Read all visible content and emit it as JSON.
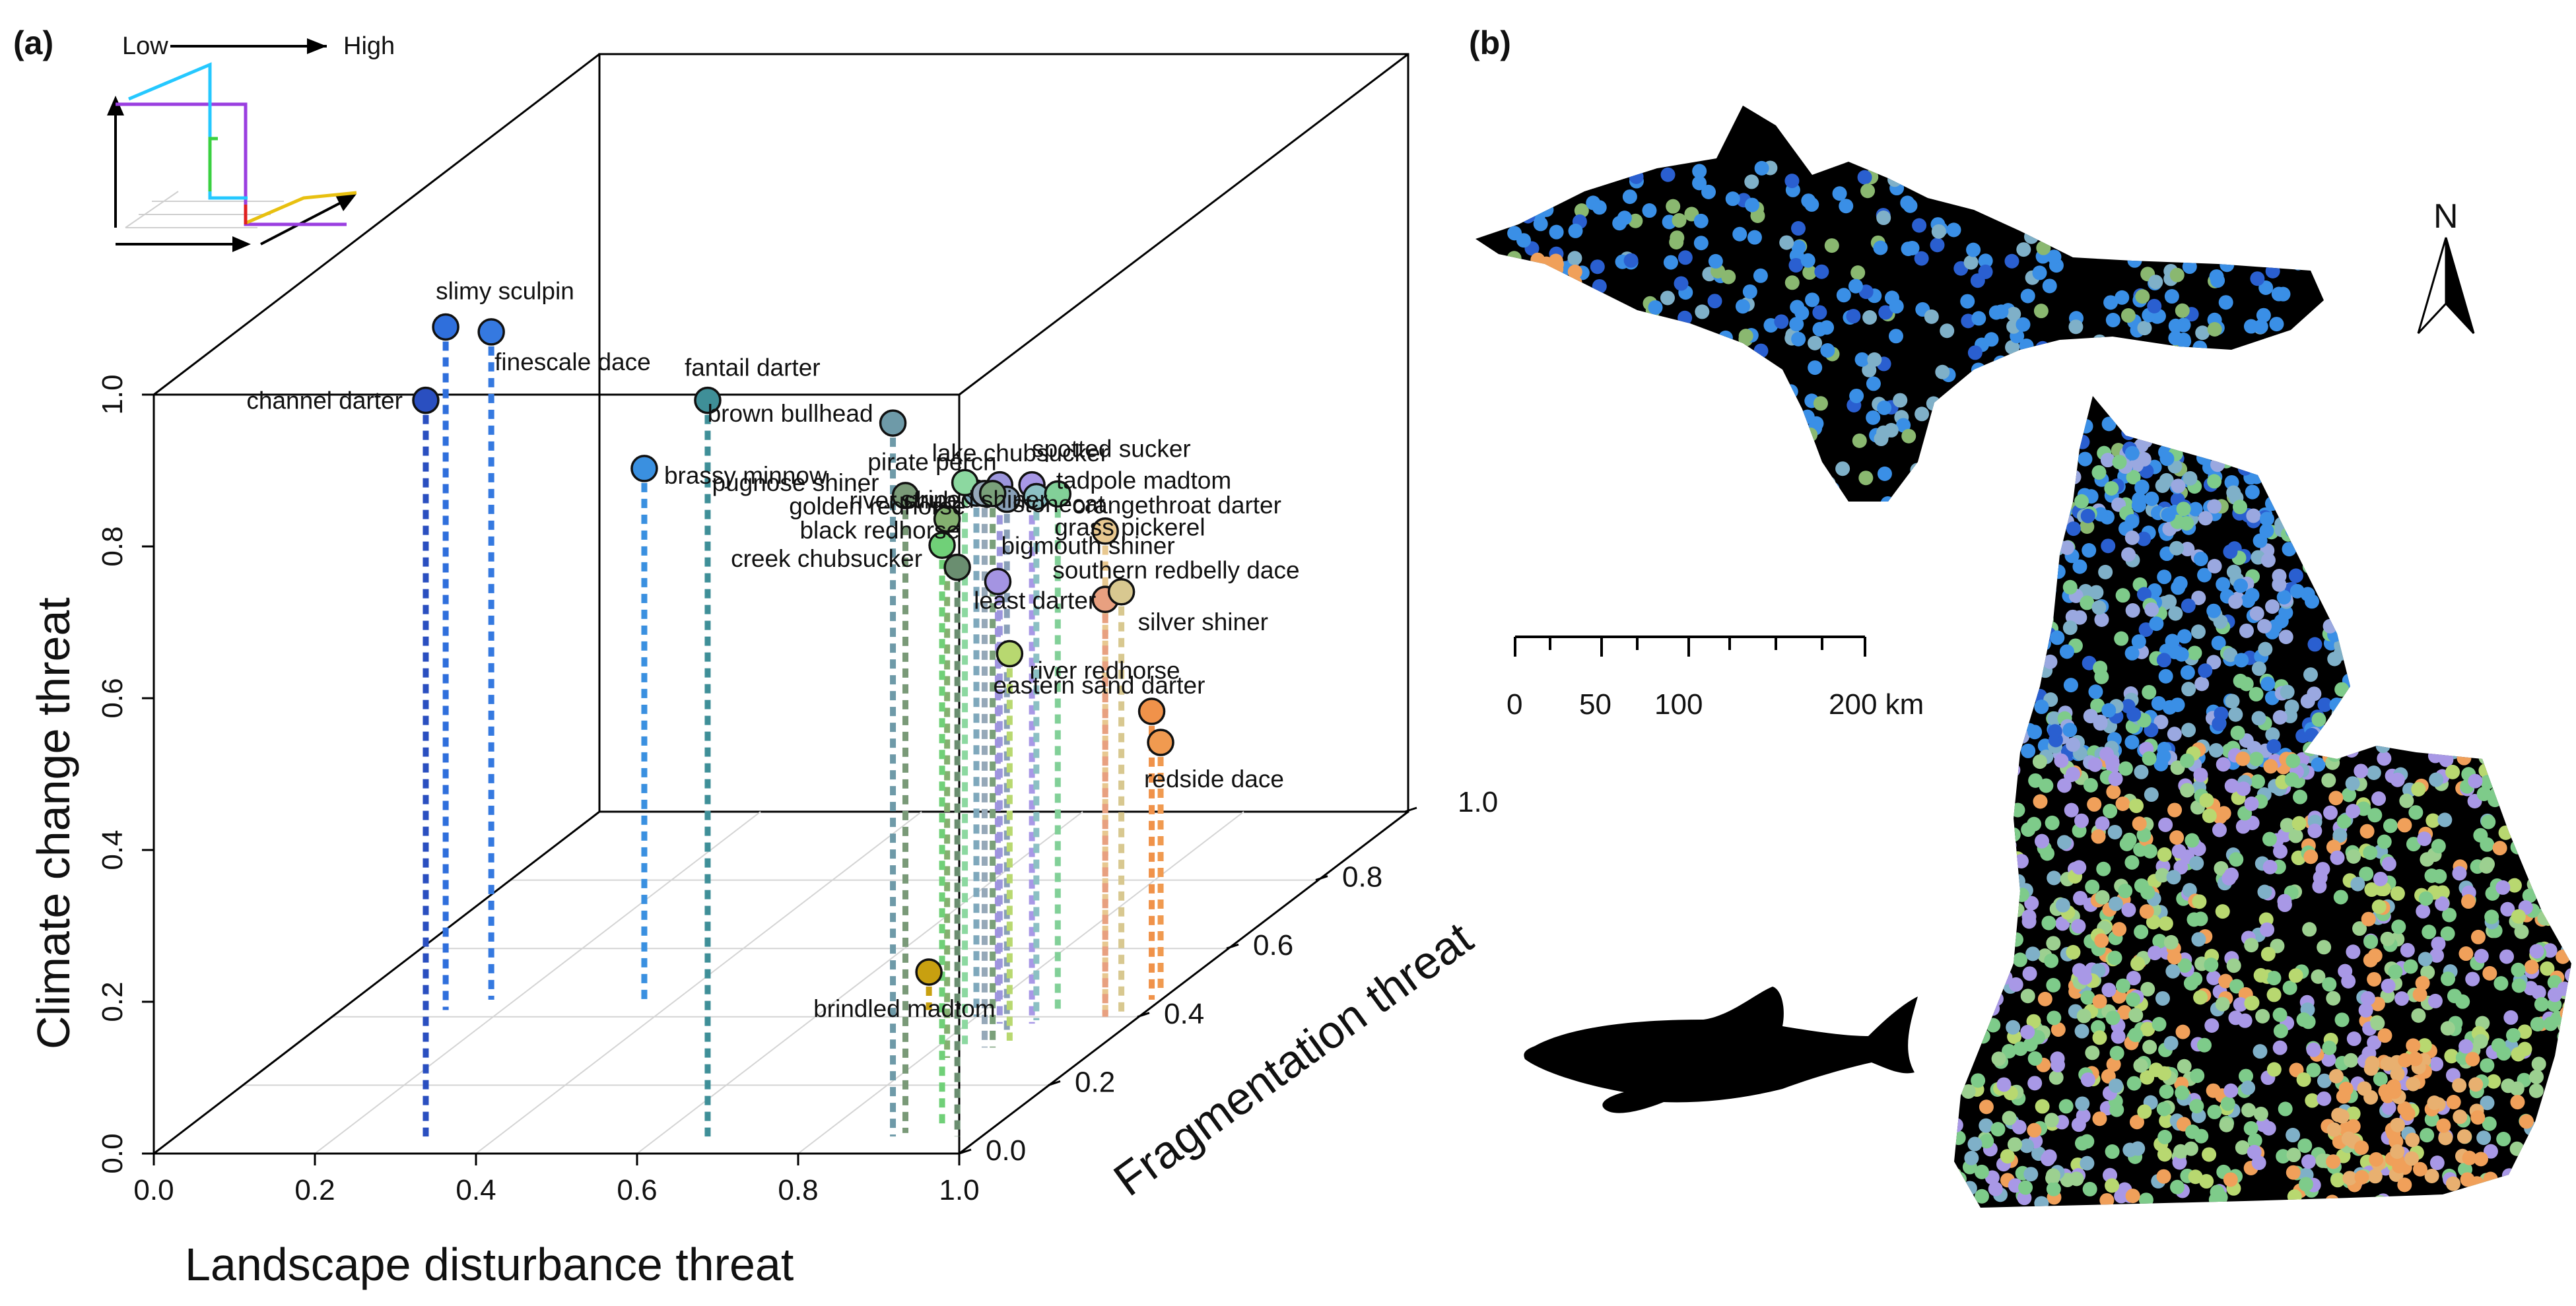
{
  "panel_labels": [
    "(a)",
    "(b)"
  ],
  "legend": {
    "low": "Low",
    "high": "High"
  },
  "map": {
    "scale_labels": [
      "0",
      "50",
      "100",
      "200 km"
    ],
    "north_label": "N",
    "silhouette": "fish-silhouette-icon"
  },
  "colors": {
    "blue_low": "#2a5fd0",
    "blue": "#3a8fe6",
    "cyan": "#7fb0c8",
    "green": "#7ecb8a",
    "lavender": "#a898e6",
    "orange": "#f0a05a",
    "olive": "#c9a514",
    "land": "#000000"
  },
  "chart_data": {
    "type": "scatter3d",
    "xlabel": "Landscape disturbance threat",
    "ylabel": "Climate change threat",
    "zlabel": "Fragmentation threat",
    "x_ticks": [
      "0.0",
      "0.2",
      "0.4",
      "0.6",
      "0.8",
      "1.0"
    ],
    "y_ticks": [
      "0.0",
      "0.2",
      "0.4",
      "0.6",
      "0.8",
      "1.0"
    ],
    "z_ticks": [
      "0.0",
      "0.2",
      "0.4",
      "0.6",
      "0.8",
      "1.0"
    ],
    "xlim": [
      0,
      1
    ],
    "ylim": [
      0,
      1
    ],
    "zlim": [
      0,
      1
    ],
    "points": [
      {
        "name": "channel darter",
        "x": 0.31,
        "y": 0.97,
        "z": 0.05,
        "color": "#2a4fc0"
      },
      {
        "name": "slimy sculpin",
        "x": 0.13,
        "y": 0.9,
        "z": 0.42,
        "color": "#2f6fdc"
      },
      {
        "name": "finescale dace",
        "x": 0.17,
        "y": 0.88,
        "z": 0.45,
        "color": "#3579e0"
      },
      {
        "name": "brassy minnow",
        "x": 0.36,
        "y": 0.7,
        "z": 0.45,
        "color": "#3a90e0"
      },
      {
        "name": "fantail darter",
        "x": 0.66,
        "y": 0.97,
        "z": 0.05,
        "color": "#3f8f98"
      },
      {
        "name": "bigmouth shiner",
        "x": 0.81,
        "y": 0.56,
        "z": 0.43,
        "color": "#a494e2"
      },
      {
        "name": "pirate perch",
        "x": 0.84,
        "y": 0.71,
        "z": 0.38,
        "color": "#9c96dc"
      },
      {
        "name": "golden redhorse",
        "x": 0.86,
        "y": 0.7,
        "z": 0.36,
        "color": "#8aa0b8"
      },
      {
        "name": "spotted sucker",
        "x": 0.88,
        "y": 0.71,
        "z": 0.38,
        "color": "#a898e6"
      },
      {
        "name": "tadpole madtom",
        "x": 0.88,
        "y": 0.69,
        "z": 0.39,
        "color": "#8cc0c4"
      },
      {
        "name": "grass pickerel",
        "x": 0.89,
        "y": 0.68,
        "z": 0.42,
        "color": "#82d098"
      },
      {
        "name": "river chub",
        "x": 0.8,
        "y": 0.69,
        "z": 0.4,
        "color": "#7fa8bc"
      },
      {
        "name": "brown bullhead",
        "x": 0.89,
        "y": 0.94,
        "z": 0.05,
        "color": "#6e9aa8"
      },
      {
        "name": "lake chubsucker",
        "x": 0.83,
        "y": 0.74,
        "z": 0.32,
        "color": "#8cd8a0"
      },
      {
        "name": "black redhorse",
        "x": 0.86,
        "y": 0.73,
        "z": 0.31,
        "color": "#96a8b8"
      },
      {
        "name": "stonecat",
        "x": 0.87,
        "y": 0.73,
        "z": 0.31,
        "color": "#7aa07a"
      },
      {
        "name": "orangethroat darter",
        "x": 0.96,
        "y": 0.64,
        "z": 0.4,
        "color": "#e8c890"
      },
      {
        "name": "southern redbelly dace",
        "x": 0.96,
        "y": 0.55,
        "z": 0.4,
        "color": "#e8a080"
      },
      {
        "name": "silver shiner",
        "x": 0.98,
        "y": 0.56,
        "z": 0.4,
        "color": "#d8c890"
      },
      {
        "name": "striped shiner",
        "x": 0.83,
        "y": 0.71,
        "z": 0.28,
        "color": "#84b070"
      },
      {
        "name": "pugnose shiner",
        "x": 0.9,
        "y": 0.84,
        "z": 0.06,
        "color": "#7a9a78"
      },
      {
        "name": "creek chubsucker",
        "x": 0.94,
        "y": 0.77,
        "z": 0.07,
        "color": "#70d078"
      },
      {
        "name": "least darter",
        "x": 0.97,
        "y": 0.75,
        "z": 0.05,
        "color": "#6a8e70"
      },
      {
        "name": "river redhorse",
        "x": 0.88,
        "y": 0.51,
        "z": 0.33,
        "color": "#b8d870"
      },
      {
        "name": "eastern sand darter",
        "x": 0.99,
        "y": 0.38,
        "z": 0.45,
        "color": "#f0924a"
      },
      {
        "name": "redside dace",
        "x": 0.99,
        "y": 0.33,
        "z": 0.47,
        "color": "#f09a50"
      },
      {
        "name": "brindled madtom",
        "x": 0.73,
        "y": 0.05,
        "z": 0.42,
        "color": "#c8a010"
      }
    ]
  }
}
